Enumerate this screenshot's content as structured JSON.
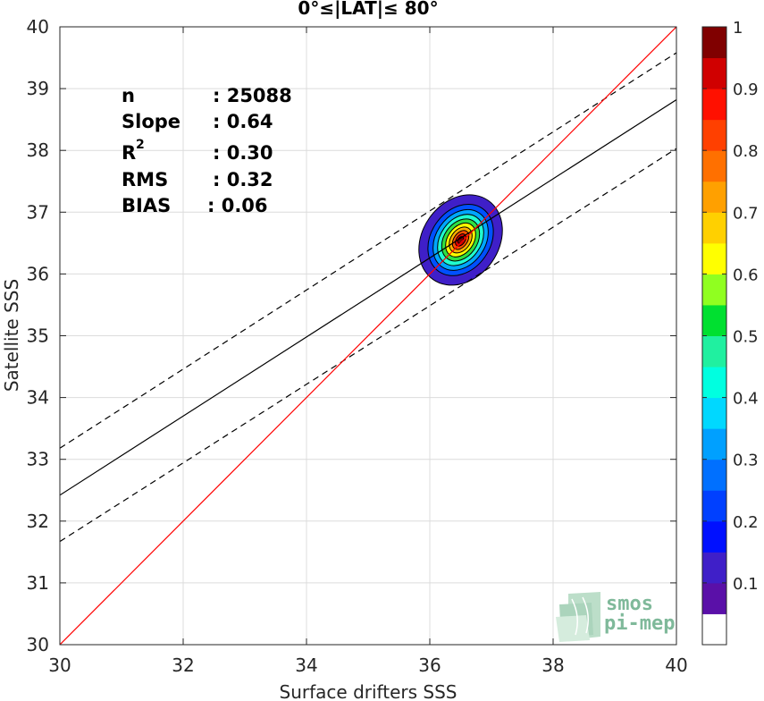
{
  "chart_data": {
    "type": "scatter",
    "title": "0°≤|LAT|≤ 80°",
    "xlabel": "Surface drifters SSS",
    "ylabel": "Satellite SSS",
    "xlim": [
      30,
      40
    ],
    "ylim": [
      30,
      40
    ],
    "xticks": [
      "30",
      "32",
      "34",
      "36",
      "38",
      "40"
    ],
    "yticks": [
      "30",
      "31",
      "32",
      "33",
      "34",
      "35",
      "36",
      "37",
      "38",
      "39",
      "40"
    ],
    "grid": true,
    "stats": {
      "n_label": "n",
      "n_value": ": 25088",
      "slope_label": "Slope",
      "slope_value": ": 0.64",
      "r2_label": "R",
      "r2_sup": "2",
      "r2_value": ": 0.30",
      "rms_label": "RMS",
      "rms_value": ": 0.32",
      "bias_label": "BIAS",
      "bias_value": ": 0.06"
    },
    "identity_line": {
      "x": [
        30,
        40
      ],
      "y": [
        30,
        40
      ],
      "color": "#ff0000"
    },
    "fit_line": {
      "x": [
        30,
        40
      ],
      "y": [
        32.42,
        38.82
      ],
      "color": "#000000"
    },
    "fit_upper": {
      "x": [
        30,
        40
      ],
      "y": [
        33.18,
        39.58
      ],
      "dashed": true
    },
    "fit_lower": {
      "x": [
        30,
        40
      ],
      "y": [
        31.67,
        38.03
      ],
      "dashed": true
    },
    "density_contours": {
      "center": [
        36.5,
        36.55
      ],
      "levels": [
        {
          "level": 0.05,
          "rx": 0.62,
          "ry": 0.78,
          "color": "#3f1fc8"
        },
        {
          "level": 0.2,
          "rx": 0.48,
          "ry": 0.62,
          "color": "#0050ff"
        },
        {
          "level": 0.3,
          "rx": 0.4,
          "ry": 0.53,
          "color": "#00a6ff"
        },
        {
          "level": 0.4,
          "rx": 0.33,
          "ry": 0.45,
          "color": "#20ffd0"
        },
        {
          "level": 0.5,
          "rx": 0.27,
          "ry": 0.37,
          "color": "#30e040"
        },
        {
          "level": 0.6,
          "rx": 0.21,
          "ry": 0.3,
          "color": "#ffff00"
        },
        {
          "level": 0.7,
          "rx": 0.16,
          "ry": 0.23,
          "color": "#ffb000"
        },
        {
          "level": 0.8,
          "rx": 0.11,
          "ry": 0.17,
          "color": "#ff5000"
        },
        {
          "level": 0.9,
          "rx": 0.07,
          "ry": 0.11,
          "color": "#e00000"
        },
        {
          "level": 1.0,
          "rx": 0.04,
          "ry": 0.06,
          "color": "#800000"
        }
      ]
    },
    "colorbar": {
      "ticks": [
        "0.1",
        "0.2",
        "0.3",
        "0.4",
        "0.5",
        "0.6",
        "0.7",
        "0.8",
        "0.9",
        "1"
      ],
      "tick_values": [
        0.1,
        0.2,
        0.3,
        0.4,
        0.5,
        0.6,
        0.7,
        0.8,
        0.9,
        1.0
      ],
      "range": [
        0,
        1
      ],
      "colors": [
        "#ffffff",
        "#5a10a8",
        "#3f1fc8",
        "#0010ff",
        "#0040ff",
        "#0070ff",
        "#00a0ff",
        "#00d8ff",
        "#00ffe0",
        "#20f0a0",
        "#00e030",
        "#90ff20",
        "#ffff00",
        "#ffd000",
        "#ffa000",
        "#ff7000",
        "#ff4000",
        "#ff1000",
        "#d00000",
        "#800000"
      ]
    }
  },
  "logo": {
    "line1": "smos",
    "line2": "pi-mep"
  }
}
